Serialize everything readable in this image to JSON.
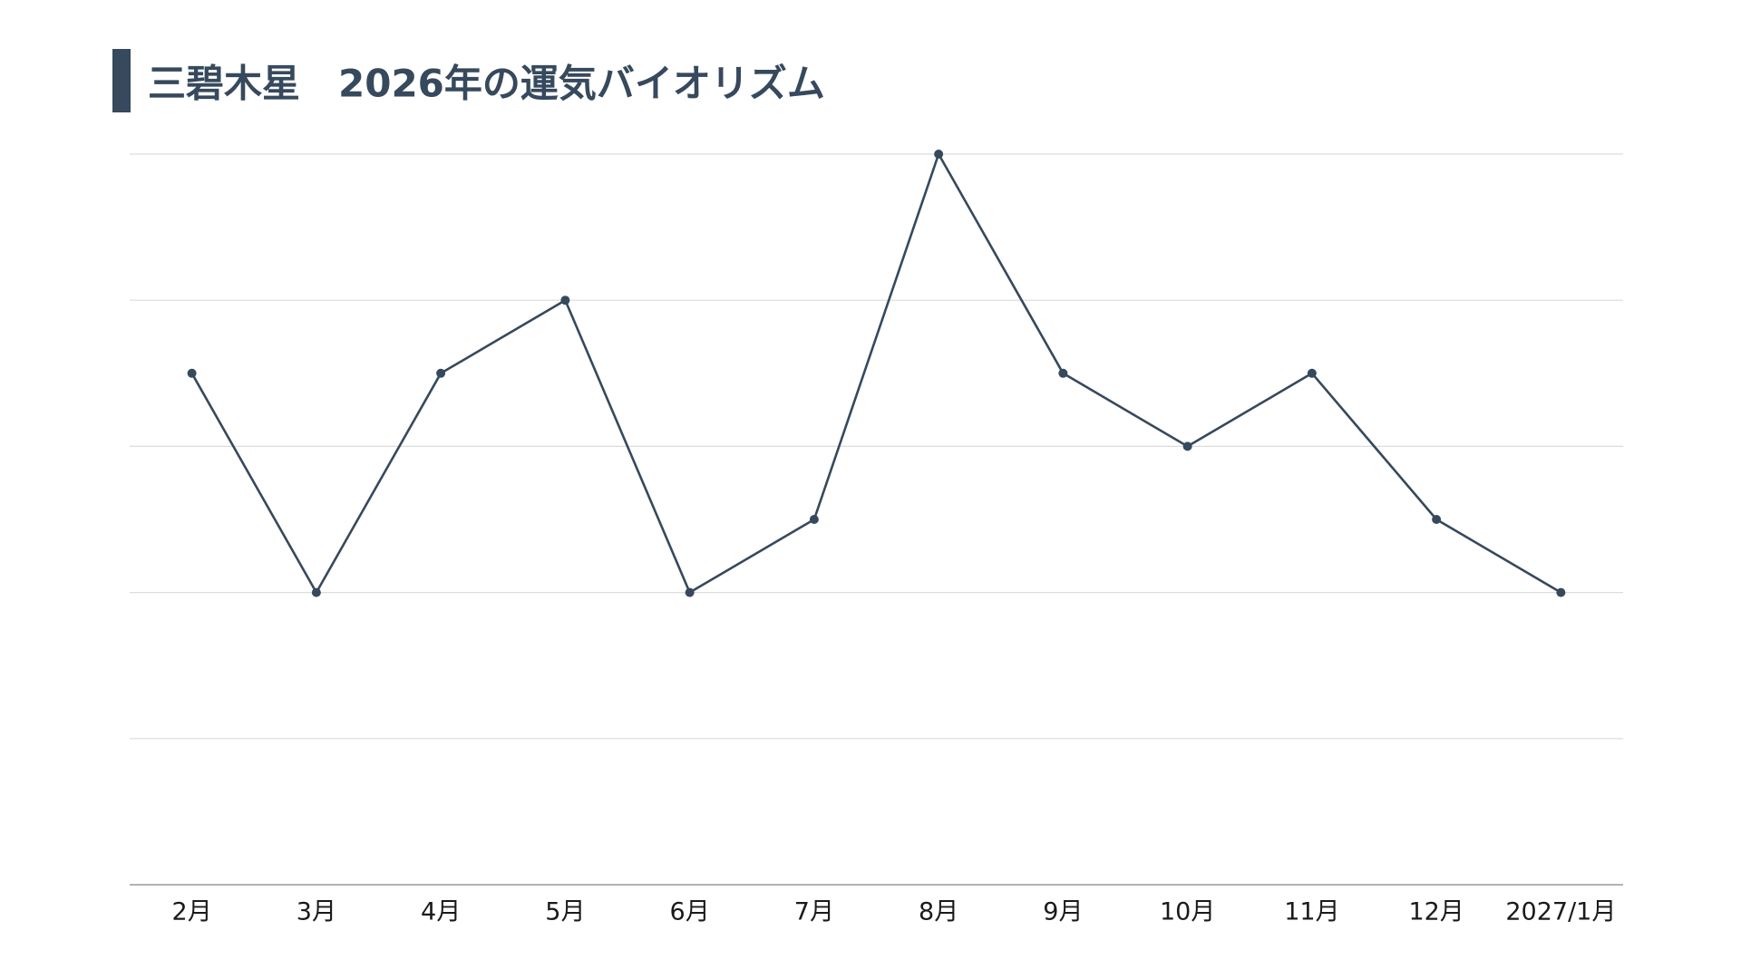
{
  "chart_data": {
    "type": "line",
    "title": "三碧木星　2026年の運気バイオリズム",
    "categories": [
      "2月",
      "3月",
      "4月",
      "5月",
      "6月",
      "7月",
      "8月",
      "9月",
      "10月",
      "11月",
      "12月",
      "2027/1月"
    ],
    "series": [
      {
        "color": "#36495d",
        "values": [
          3.5,
          2,
          3.5,
          4,
          2,
          2.5,
          5,
          3.5,
          3,
          3.5,
          2.5,
          2
        ]
      }
    ],
    "ylim": [
      0,
      5
    ],
    "yticks": [
      0,
      1,
      2,
      3,
      4,
      5
    ],
    "grid": true
  }
}
